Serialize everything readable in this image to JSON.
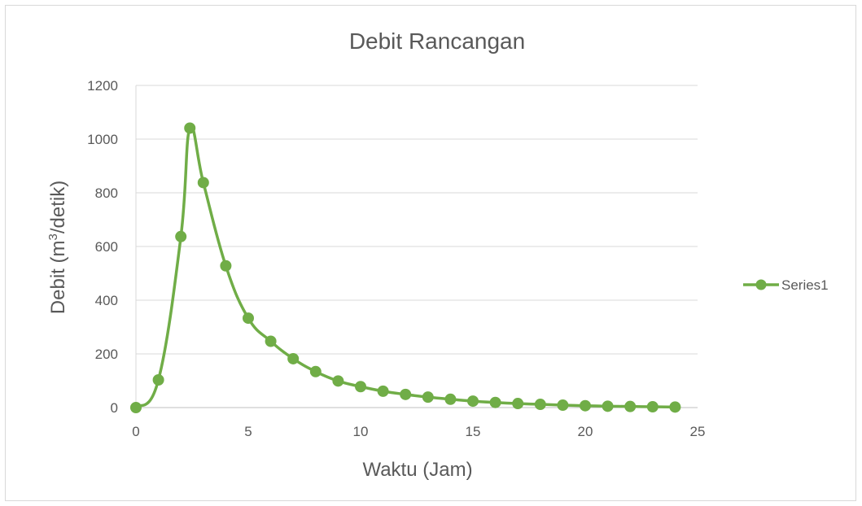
{
  "chart_data": {
    "type": "scatter",
    "title": "Debit Rancangan",
    "xlabel": "Waktu (Jam)",
    "ylabel_prefix": "Debit (m",
    "ylabel_sup": "3",
    "ylabel_suffix": "/detik)",
    "xlim": [
      0,
      25
    ],
    "ylim": [
      0,
      1200
    ],
    "xticks": [
      0,
      5,
      10,
      15,
      20,
      25
    ],
    "yticks": [
      0,
      200,
      400,
      600,
      800,
      1000,
      1200
    ],
    "grid": true,
    "legend_position": "right",
    "line_style": "smooth-with-markers",
    "series": [
      {
        "name": "Series1",
        "color": "#70ad47",
        "x": [
          0,
          1,
          2,
          2.4,
          3,
          4,
          5,
          6,
          7,
          8,
          9,
          10,
          11,
          12,
          13,
          14,
          15,
          16,
          17,
          18,
          19,
          20,
          21,
          22,
          23,
          24
        ],
        "y": [
          0,
          103,
          637,
          1041,
          838,
          528,
          333,
          247,
          182,
          134,
          99,
          78,
          61,
          49,
          39,
          31,
          24,
          19,
          15,
          12,
          9,
          7,
          5,
          4,
          3,
          2
        ]
      }
    ]
  }
}
